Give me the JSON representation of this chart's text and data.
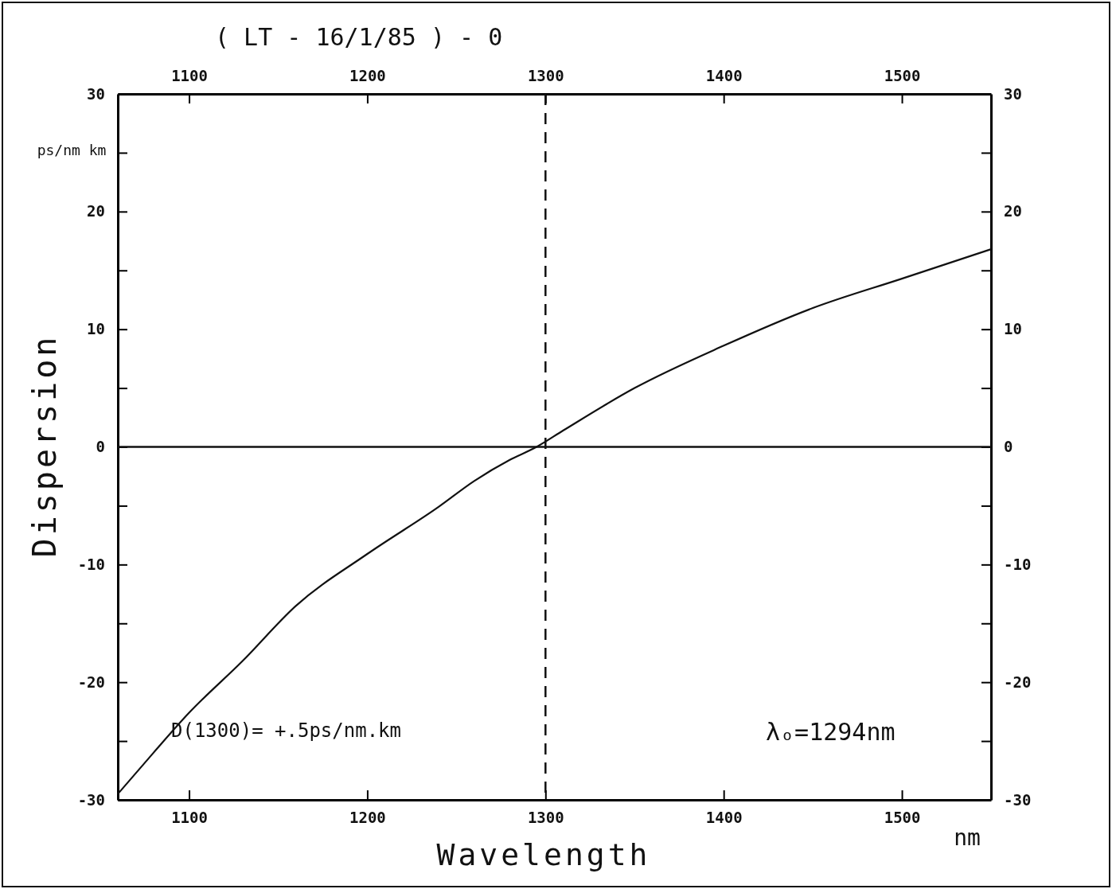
{
  "chart_data": {
    "type": "line",
    "title": "( LT - 16/1/85 )  -  0",
    "xlabel": "Wavelength",
    "ylabel": "Dispersion",
    "annotations": [
      "ps/nm km",
      "nm",
      "D(1300)= +.5ps/nm.km",
      "λₒ=1294nm"
    ],
    "x": [
      1060,
      1080,
      1100,
      1130,
      1160,
      1200,
      1240,
      1260,
      1280,
      1295,
      1310,
      1350,
      1400,
      1450,
      1500,
      1550
    ],
    "series": [
      {
        "color": "#111111",
        "values": [
          -29.5,
          -26,
          -22.6,
          -18.2,
          -13.5,
          -9.1,
          -5.1,
          -2.9,
          -1.1,
          0,
          1.4,
          5,
          8.6,
          11.8,
          14.3,
          16.8
        ]
      }
    ],
    "xlim": [
      1060,
      1550
    ],
    "xticks": [
      1100,
      1200,
      1300,
      1400,
      1500
    ],
    "x2lim": [
      1060,
      1550
    ],
    "x2ticks": [
      1100,
      1200,
      1300,
      1400,
      1500
    ],
    "ylim": [
      -30,
      30
    ],
    "yticks": [
      -30,
      {
        "value": -25,
        "label": null
      },
      -20,
      {
        "value": -15,
        "label": null
      },
      -10,
      {
        "value": -5,
        "label": null
      },
      0,
      {
        "value": 5,
        "label": null
      },
      10,
      {
        "value": 15,
        "label": null
      },
      20,
      {
        "value": 25,
        "label": null
      },
      30
    ],
    "y2lim": [
      -30,
      30
    ],
    "y2ticks": [
      -30,
      {
        "value": -25,
        "label": null
      },
      -20,
      {
        "value": -15,
        "label": null
      },
      -10,
      {
        "value": -5,
        "label": null
      },
      0,
      {
        "value": 5,
        "label": null
      },
      10,
      {
        "value": 15,
        "label": null
      },
      20,
      {
        "value": 25,
        "label": null
      },
      30
    ],
    "ref_lines": [
      {
        "axis": "x",
        "value": 1300,
        "line_style": "dashed",
        "color": "#111111"
      },
      {
        "axis": "y",
        "value": 0,
        "line_style": "solid",
        "color": "#111111"
      }
    ],
    "grid": false,
    "marker": "none",
    "line_style": "solid"
  }
}
